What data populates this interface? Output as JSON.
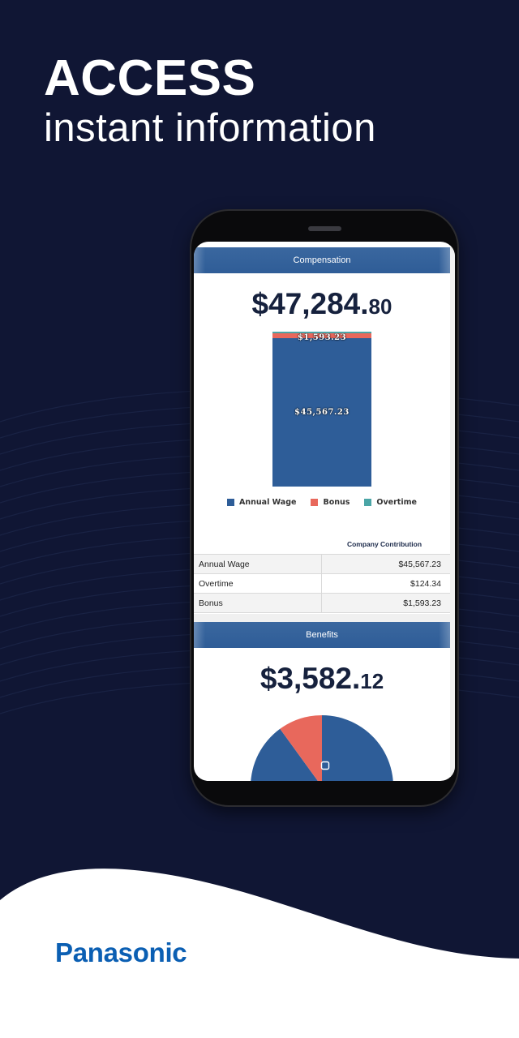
{
  "promo": {
    "headline": "ACCESS",
    "subheadline": "instant information",
    "brand": "Panasonic"
  },
  "colors": {
    "background": "#101634",
    "annual_wage": "#2e5d98",
    "bonus": "#e8685c",
    "overtime": "#4aa5a6",
    "brand_blue": "#0b5fb3"
  },
  "compensation": {
    "section_title": "Compensation",
    "total_main": "$47,284.",
    "total_cents": "80",
    "column_header": "Company Contribution",
    "rows": [
      {
        "label": "Annual Wage",
        "value": "$45,567.23"
      },
      {
        "label": "Overtime",
        "value": "$124.34"
      },
      {
        "label": "Bonus",
        "value": "$1,593.23"
      }
    ]
  },
  "chart_data": {
    "type": "bar",
    "stacked": true,
    "categories": [
      ""
    ],
    "series": [
      {
        "name": "Annual Wage",
        "values": [
          45567.23
        ],
        "label": "$45,567.23",
        "color": "#2e5d98"
      },
      {
        "name": "Bonus",
        "values": [
          1593.23
        ],
        "label": "$1,593.23",
        "color": "#e8685c"
      },
      {
        "name": "Overtime",
        "values": [
          124.34
        ],
        "label": "",
        "color": "#4aa5a6"
      }
    ],
    "legend": [
      "Annual Wage",
      "Bonus",
      "Overtime"
    ],
    "legend_position": "bottom"
  },
  "benefits": {
    "section_title": "Benefits",
    "total_main": "$3,582.",
    "total_cents": "12",
    "pie": {
      "type": "pie",
      "slices_visible": [
        {
          "color": "#2e5d98",
          "fraction": 0.9
        },
        {
          "color": "#e8685c",
          "fraction": 0.1
        }
      ]
    }
  }
}
